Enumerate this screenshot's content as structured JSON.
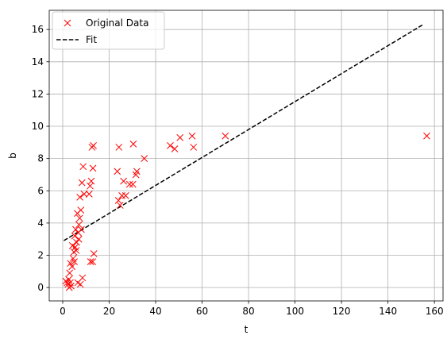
{
  "chart_data": {
    "type": "scatter",
    "xlabel": "t",
    "ylabel": "b",
    "xlim": [
      -5.8,
      163.7
    ],
    "ylim": [
      -0.83,
      17.19
    ],
    "xticks": [
      0,
      20,
      40,
      60,
      80,
      100,
      120,
      140,
      160
    ],
    "yticks": [
      0,
      2,
      4,
      6,
      8,
      10,
      12,
      14,
      16
    ],
    "grid": true,
    "legend": {
      "position": "top-left"
    },
    "colors": {
      "data": "#ff0000",
      "fit": "#000000",
      "grid": "#b0b0b0"
    },
    "series": [
      {
        "name": "Original Data",
        "style": "x-markers",
        "points": [
          [
            1.3,
            0.4
          ],
          [
            1.9,
            0.3
          ],
          [
            2.3,
            0.2
          ],
          [
            2.6,
            0.5
          ],
          [
            2.8,
            0.0
          ],
          [
            3.0,
            0.9
          ],
          [
            3.2,
            0.3
          ],
          [
            3.3,
            1.5
          ],
          [
            3.6,
            0.1
          ],
          [
            4.0,
            1.3
          ],
          [
            4.2,
            2.6
          ],
          [
            4.5,
            1.8
          ],
          [
            4.8,
            2.2
          ],
          [
            5.0,
            1.6
          ],
          [
            5.2,
            3.2
          ],
          [
            5.4,
            2.5
          ],
          [
            5.6,
            3.6
          ],
          [
            5.8,
            2.3
          ],
          [
            6.0,
            2.8
          ],
          [
            6.3,
            4.6
          ],
          [
            6.5,
            0.3
          ],
          [
            6.7,
            3.4
          ],
          [
            6.9,
            3.0
          ],
          [
            7.0,
            3.9
          ],
          [
            7.3,
            4.3
          ],
          [
            7.4,
            5.6
          ],
          [
            7.6,
            0.2
          ],
          [
            7.8,
            4.8
          ],
          [
            8.0,
            3.6
          ],
          [
            8.3,
            6.5
          ],
          [
            8.5,
            0.6
          ],
          [
            8.8,
            7.5
          ],
          [
            9.2,
            5.8
          ],
          [
            11.4,
            5.8
          ],
          [
            11.8,
            6.3
          ],
          [
            12.0,
            1.6
          ],
          [
            12.3,
            6.6
          ],
          [
            12.6,
            8.7
          ],
          [
            12.9,
            1.6
          ],
          [
            13.0,
            7.4
          ],
          [
            13.2,
            8.8
          ],
          [
            13.4,
            2.1
          ],
          [
            23.5,
            7.2
          ],
          [
            24.0,
            5.4
          ],
          [
            24.2,
            8.7
          ],
          [
            24.7,
            5.1
          ],
          [
            25.5,
            5.7
          ],
          [
            26.2,
            6.6
          ],
          [
            27.1,
            5.7
          ],
          [
            28.8,
            6.4
          ],
          [
            30.2,
            6.4
          ],
          [
            30.4,
            8.9
          ],
          [
            31.5,
            7.0
          ],
          [
            31.9,
            7.2
          ],
          [
            35.1,
            8.0
          ],
          [
            46.3,
            8.8
          ],
          [
            48.2,
            8.6
          ],
          [
            50.5,
            9.3
          ],
          [
            55.7,
            9.4
          ],
          [
            56.3,
            8.7
          ],
          [
            70.0,
            9.4
          ],
          [
            156.7,
            9.4
          ]
        ]
      },
      {
        "name": "Fit",
        "style": "dashed-line",
        "points": [
          [
            0.5,
            2.91
          ],
          [
            155.5,
            16.34
          ]
        ]
      }
    ]
  }
}
